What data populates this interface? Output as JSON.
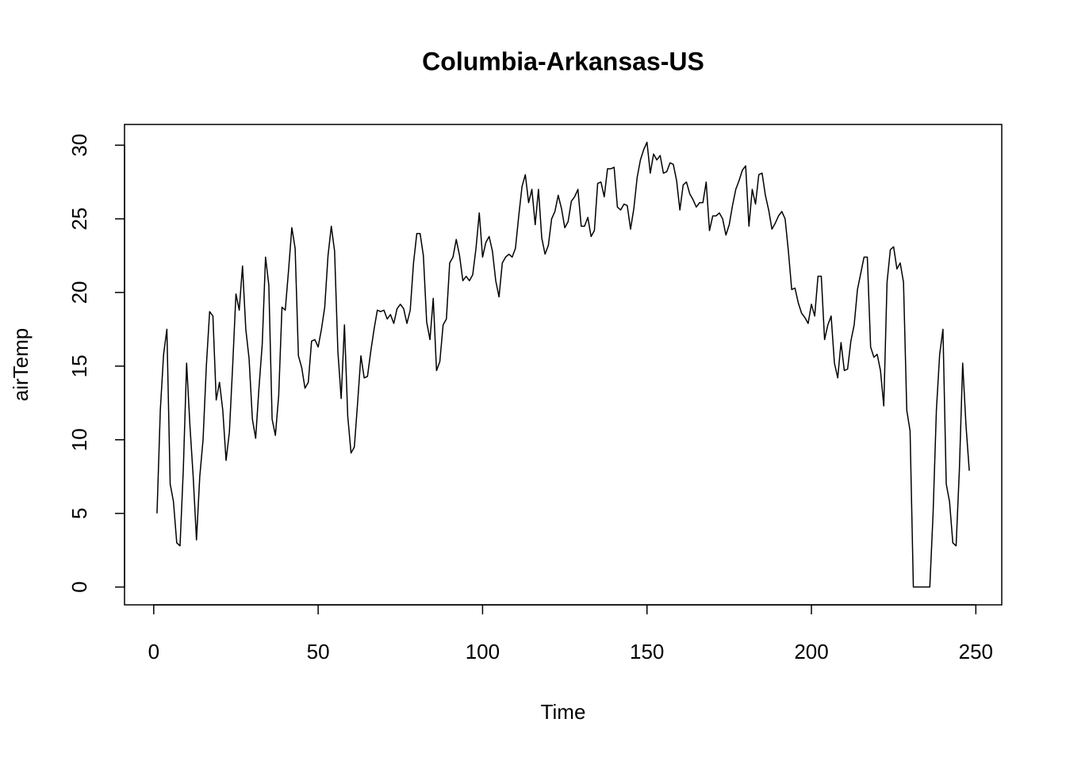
{
  "chart_data": {
    "type": "line",
    "title": "Columbia-Arkansas-US",
    "x_label": "Time",
    "y_label": "airTemp",
    "color": "#000000",
    "grid": false,
    "xlim": [
      -8.88,
      257.88
    ],
    "ylim": [
      -1.208,
      31.408
    ],
    "xticks": [
      0,
      50,
      100,
      150,
      200,
      250
    ],
    "yticks": [
      0,
      5,
      10,
      15,
      20,
      25,
      30
    ],
    "x": [
      1,
      2,
      3,
      4,
      5,
      6,
      7,
      8,
      9,
      10,
      11,
      12,
      13,
      14,
      15,
      16,
      17,
      18,
      19,
      20,
      21,
      22,
      23,
      24,
      25,
      26,
      27,
      28,
      29,
      30,
      31,
      32,
      33,
      34,
      35,
      36,
      37,
      38,
      39,
      40,
      41,
      42,
      43,
      44,
      45,
      46,
      47,
      48,
      49,
      50,
      51,
      52,
      53,
      54,
      55,
      56,
      57,
      58,
      59,
      60,
      61,
      62,
      63,
      64,
      65,
      66,
      67,
      68,
      69,
      70,
      71,
      72,
      73,
      74,
      75,
      76,
      77,
      78,
      79,
      80,
      81,
      82,
      83,
      84,
      85,
      86,
      87,
      88,
      89,
      90,
      91,
      92,
      93,
      94,
      95,
      96,
      97,
      98,
      99,
      100,
      101,
      102,
      103,
      104,
      105,
      106,
      107,
      108,
      109,
      110,
      111,
      112,
      113,
      114,
      115,
      116,
      117,
      118,
      119,
      120,
      121,
      122,
      123,
      124,
      125,
      126,
      127,
      128,
      129,
      130,
      131,
      132,
      133,
      134,
      135,
      136,
      137,
      138,
      139,
      140,
      141,
      142,
      143,
      144,
      145,
      146,
      147,
      148,
      149,
      150,
      151,
      152,
      153,
      154,
      155,
      156,
      157,
      158,
      159,
      160,
      161,
      162,
      163,
      164,
      165,
      166,
      167,
      168,
      169,
      170,
      171,
      172,
      173,
      174,
      175,
      176,
      177,
      178,
      179,
      180,
      181,
      182,
      183,
      184,
      185,
      186,
      187,
      188,
      189,
      190,
      191,
      192,
      193,
      194,
      195,
      196,
      197,
      198,
      199,
      200,
      201,
      202,
      203,
      204,
      205,
      206,
      207,
      208,
      209,
      210,
      211,
      212,
      213,
      214,
      215,
      216,
      217,
      218,
      219,
      220,
      221,
      222,
      223,
      224,
      225,
      226,
      227,
      228,
      229,
      230,
      231,
      232,
      233,
      234,
      235,
      236,
      237,
      238,
      239,
      240,
      241,
      242,
      243,
      244,
      245,
      246,
      247,
      248
    ],
    "values": [
      5,
      12,
      15.8,
      17.5,
      7,
      5.8,
      3,
      2.8,
      8,
      15.2,
      11,
      7.5,
      3.2,
      7.5,
      10,
      15,
      18.7,
      18.4,
      12.7,
      13.9,
      12,
      8.6,
      10.5,
      15,
      19.9,
      18.8,
      21.8,
      17.5,
      15.5,
      11.4,
      10.1,
      13.5,
      16.5,
      22.4,
      20.5,
      11.4,
      10.3,
      13,
      19,
      18.8,
      21.5,
      24.4,
      23,
      15.7,
      14.9,
      13.5,
      13.9,
      16.7,
      16.8,
      16.3,
      17.5,
      19,
      22.5,
      24.5,
      22.8,
      16,
      12.8,
      17.8,
      11.6,
      9.1,
      9.5,
      12.5,
      15.7,
      14.2,
      14.3,
      16,
      17.5,
      18.8,
      18.7,
      18.8,
      18.2,
      18.5,
      17.9,
      18.9,
      19.2,
      18.9,
      17.9,
      18.8,
      22,
      24,
      24,
      22.5,
      18,
      16.8,
      19.6,
      14.7,
      15.3,
      17.8,
      18.2,
      22,
      22.4,
      23.6,
      22.5,
      20.8,
      21.1,
      20.8,
      21.2,
      23,
      25.4,
      22.4,
      23.4,
      23.8,
      22.8,
      20.8,
      19.7,
      22,
      22.4,
      22.6,
      22.4,
      23,
      25.2,
      27.2,
      28,
      26.1,
      27,
      24.6,
      27,
      23.7,
      22.6,
      23.2,
      25,
      25.5,
      26.6,
      25.7,
      24.4,
      24.8,
      26.2,
      26.5,
      27,
      24.5,
      24.5,
      25.1,
      23.8,
      24.2,
      27.4,
      27.5,
      26.5,
      28.4,
      28.4,
      28.5,
      25.8,
      25.6,
      26,
      25.9,
      24.3,
      25.7,
      27.8,
      29,
      29.7,
      30.2,
      28.1,
      29.4,
      29,
      29.3,
      28.1,
      28.2,
      28.8,
      28.7,
      27.6,
      25.6,
      27.3,
      27.5,
      26.7,
      26.3,
      25.8,
      26.1,
      26.1,
      27.5,
      24.2,
      25.2,
      25.2,
      25.4,
      25,
      23.9,
      24.6,
      25.9,
      27,
      27.6,
      28.3,
      28.6,
      24.5,
      27,
      26,
      28,
      28.1,
      26.6,
      25.6,
      24.3,
      24.7,
      25.2,
      25.5,
      25,
      22.8,
      20.2,
      20.3,
      19.3,
      18.6,
      18.3,
      17.9,
      19.2,
      18.4,
      21.1,
      21.1,
      16.8,
      17.8,
      18.4,
      15.2,
      14.2,
      16.6,
      14.7,
      14.8,
      16.7,
      17.8,
      20.2,
      21.3,
      22.4,
      22.4,
      16.3,
      15.6,
      15.8,
      14.7,
      12.3,
      20.7,
      22.9,
      23.1,
      21.6,
      22,
      20.7,
      12,
      10.6,
      0,
      0,
      0,
      0,
      0,
      0,
      5,
      12,
      15.8,
      17.5,
      7,
      5.8,
      3,
      2.8,
      8,
      15.2,
      11,
      7.9
    ]
  }
}
